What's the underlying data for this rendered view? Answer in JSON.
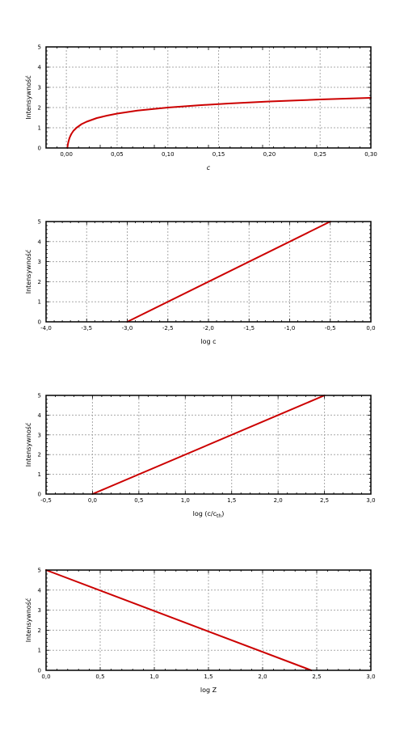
{
  "chart_data": [
    {
      "type": "line",
      "xlabel": "c",
      "ylabel": "Intensywność",
      "xlim": [
        -0.02,
        0.3
      ],
      "ylim": [
        0,
        5
      ],
      "xticks": [
        0.0,
        0.05,
        0.1,
        0.15,
        0.2,
        0.25,
        0.3
      ],
      "xtick_labels": [
        "0,00",
        "0,05",
        "0,10",
        "0,15",
        "0,20",
        "0,25",
        "0,30"
      ],
      "yticks": [
        0,
        1,
        2,
        3,
        4,
        5
      ],
      "ytick_labels": [
        "0",
        "1",
        "2",
        "3",
        "4",
        "5"
      ],
      "grid": true,
      "series": [
        {
          "color": "#cc0000",
          "x": [
            0.001,
            0.0012,
            0.0015,
            0.002,
            0.003,
            0.004,
            0.005,
            0.007,
            0.01,
            0.015,
            0.02,
            0.03,
            0.04,
            0.05,
            0.07,
            0.1,
            0.13,
            0.16,
            0.2,
            0.25,
            0.3
          ],
          "y": [
            0.0,
            0.08,
            0.18,
            0.3,
            0.48,
            0.6,
            0.7,
            0.85,
            1.0,
            1.18,
            1.3,
            1.48,
            1.6,
            1.7,
            1.85,
            2.0,
            2.11,
            2.2,
            2.3,
            2.4,
            2.48
          ]
        }
      ]
    },
    {
      "type": "line",
      "xlabel": "log c",
      "ylabel": "Intensywność",
      "xlim": [
        -4.0,
        0.0
      ],
      "ylim": [
        0,
        5
      ],
      "xticks": [
        -4.0,
        -3.5,
        -3.0,
        -2.5,
        -2.0,
        -1.5,
        -1.0,
        -0.5,
        0.0
      ],
      "xtick_labels": [
        "-4,0",
        "-3,5",
        "-3,0",
        "-2,5",
        "-2,0",
        "-1,5",
        "-1,0",
        "-0,5",
        "0,0"
      ],
      "yticks": [
        0,
        1,
        2,
        3,
        4,
        5
      ],
      "ytick_labels": [
        "0",
        "1",
        "2",
        "3",
        "4",
        "5"
      ],
      "grid": true,
      "series": [
        {
          "color": "#cc0000",
          "x": [
            -3.0,
            -0.5
          ],
          "y": [
            0,
            5
          ]
        }
      ]
    },
    {
      "type": "line",
      "xlabel": "log (c/c",
      "xlabel_sub": "th",
      "xlabel_end": ")",
      "ylabel": "Intensywność",
      "xlim": [
        -0.5,
        3.0
      ],
      "ylim": [
        0,
        5
      ],
      "xticks": [
        -0.5,
        0.0,
        0.5,
        1.0,
        1.5,
        2.0,
        2.5,
        3.0
      ],
      "xtick_labels": [
        "-0,5",
        "0,0",
        "0,5",
        "1,0",
        "1,5",
        "2,0",
        "2,5",
        "3,0"
      ],
      "yticks": [
        0,
        1,
        2,
        3,
        4,
        5
      ],
      "ytick_labels": [
        "0",
        "1",
        "2",
        "3",
        "4",
        "5"
      ],
      "grid": true,
      "series": [
        {
          "color": "#cc0000",
          "x": [
            0.0,
            2.5
          ],
          "y": [
            0,
            5
          ]
        }
      ]
    },
    {
      "type": "line",
      "xlabel": "log Z",
      "ylabel": "Intensywność",
      "xlim": [
        0.0,
        3.0
      ],
      "ylim": [
        0,
        5
      ],
      "xticks": [
        0.0,
        0.5,
        1.0,
        1.5,
        2.0,
        2.5,
        3.0
      ],
      "xtick_labels": [
        "0,0",
        "0,5",
        "1,0",
        "1,5",
        "2,0",
        "2,5",
        "3,0"
      ],
      "yticks": [
        0,
        1,
        2,
        3,
        4,
        5
      ],
      "ytick_labels": [
        "0",
        "1",
        "2",
        "3",
        "4",
        "5"
      ],
      "grid": true,
      "series": [
        {
          "color": "#cc0000",
          "x": [
            0.0,
            2.45
          ],
          "y": [
            5,
            0
          ]
        }
      ]
    }
  ]
}
